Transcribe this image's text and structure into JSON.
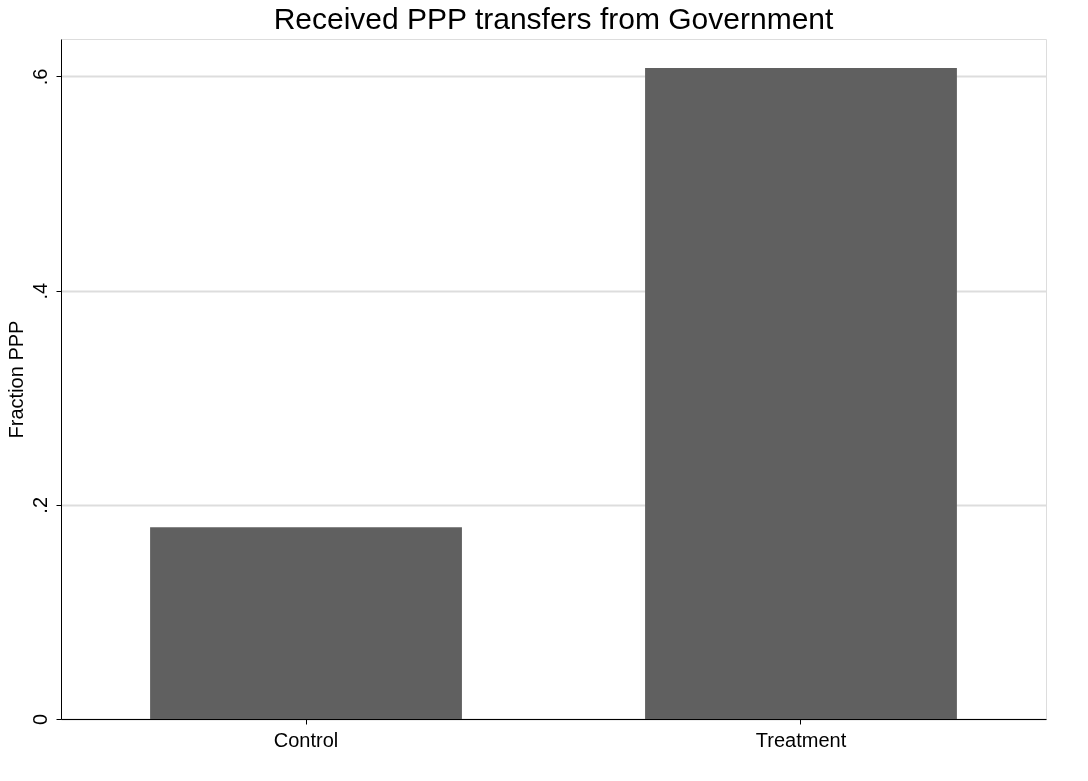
{
  "chart_data": {
    "type": "bar",
    "title": "Received PPP transfers from Government",
    "ylabel": "Fraction PPP",
    "categories": [
      "Control",
      "Treatment"
    ],
    "values": [
      0.179,
      0.608
    ],
    "color": "#606060",
    "ylim": [
      0,
      0.635
    ],
    "yticks": [
      {
        "value": 0,
        "label": "0"
      },
      {
        "value": 0.2,
        "label": ".2"
      },
      {
        "value": 0.4,
        "label": ".4"
      },
      {
        "value": 0.6,
        "label": ".6"
      }
    ],
    "grid": "y"
  }
}
